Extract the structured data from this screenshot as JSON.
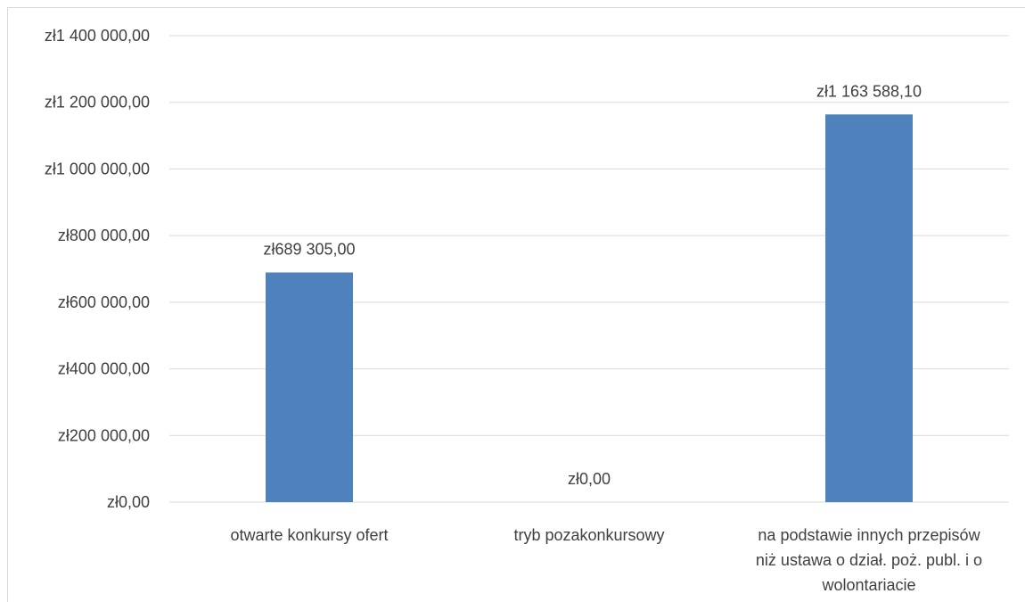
{
  "chart_data": {
    "type": "bar",
    "categories": [
      [
        "otwarte konkursy ofert"
      ],
      [
        "tryb pozakonkursowy"
      ],
      [
        "na podstawie innych przepisów",
        "niż ustawa o dział. poż. publ. i o",
        "wolontariacie"
      ]
    ],
    "values": [
      689305.0,
      0.0,
      1163588.1
    ],
    "data_labels": [
      "zł689 305,00",
      "zł0,00",
      "zł1 163 588,10"
    ],
    "y_ticks": [
      0,
      200000,
      400000,
      600000,
      800000,
      1000000,
      1200000,
      1400000
    ],
    "y_tick_labels": [
      "zł0,00",
      "zł200 000,00",
      "zł400 000,00",
      "zł600 000,00",
      "zł800 000,00",
      "zł1 000 000,00",
      "zł1 200 000,00",
      "zł1 400 000,00"
    ],
    "ylim": [
      0,
      1400000
    ],
    "grid": true,
    "bar_color": "#4f81bd",
    "title": "",
    "xlabel": "",
    "ylabel": ""
  }
}
